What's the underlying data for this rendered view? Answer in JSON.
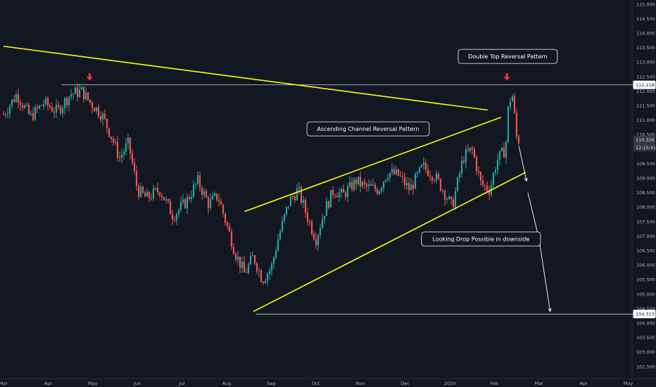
{
  "chart_data": {
    "type": "candlestick",
    "instrument_note": "",
    "x_axis": {
      "tick_labels": [
        "Mar",
        "Apr",
        "May",
        "Jun",
        "Jul",
        "Aug",
        "Sep",
        "Oct",
        "Nov",
        "Dec",
        "2020",
        "Feb",
        "Mar",
        "Apr",
        "May"
      ]
    },
    "y_axis": {
      "range": [
        102.3,
        115.0
      ],
      "tick_labels": [
        "115.000",
        "114.500",
        "114.000",
        "113.500",
        "113.000",
        "112.500",
        "112.000",
        "111.500",
        "111.000",
        "110.500",
        "110.000",
        "109.500",
        "109.000",
        "108.500",
        "108.000",
        "107.500",
        "107.000",
        "106.500",
        "106.000",
        "105.500",
        "105.000",
        "104.500",
        "104.000",
        "103.500",
        "103.000",
        "102.500"
      ]
    },
    "price_tags": [
      {
        "label": "112.218",
        "value": 112.218,
        "style": "outline"
      },
      {
        "label": "110.326",
        "value": 110.326,
        "style": "filled"
      },
      {
        "label": "12:15:41",
        "value": 110.06,
        "style": "filled"
      },
      {
        "label": "104.313",
        "value": 104.313,
        "style": "outline"
      }
    ],
    "horizontal_levels": [
      {
        "value": 112.218,
        "from_month": 1.3,
        "to_month": 14.2
      },
      {
        "value": 104.313,
        "from_month": 5.65,
        "to_month": 14.2
      }
    ],
    "trend_lines": [
      {
        "color": "#ffff00",
        "from": [
          0.0,
          113.55
        ],
        "to": [
          10.85,
          111.35
        ]
      },
      {
        "color": "#ffff00",
        "from": [
          5.4,
          107.85
        ],
        "to": [
          11.15,
          111.1
        ]
      },
      {
        "color": "#ffff00",
        "from": [
          5.6,
          104.4
        ],
        "to": [
          11.7,
          109.2
        ]
      }
    ],
    "arrows": [
      {
        "color": "#ffffff",
        "from": [
          11.55,
          110.1
        ],
        "to": [
          11.72,
          108.9
        ]
      },
      {
        "color": "#ffffff",
        "from": [
          11.75,
          108.5
        ],
        "to": [
          12.0,
          106.9
        ]
      },
      {
        "color": "#ffffff",
        "from": [
          12.0,
          106.9
        ],
        "to": [
          12.25,
          104.4
        ]
      }
    ],
    "markers": [
      {
        "type": "down-arrow",
        "color": "#f23645",
        "at": [
          1.93,
          112.4
        ]
      },
      {
        "type": "down-arrow",
        "color": "#f23645",
        "at": [
          11.28,
          112.4
        ]
      }
    ],
    "annotations": [
      {
        "text": "Double Top Reversal Pattern",
        "at": [
          11.3,
          113.2
        ]
      },
      {
        "text": "Ascending Channel Reversal Pattern",
        "at": [
          8.17,
          110.7
        ]
      },
      {
        "text": "Looking Drop Possible in downside",
        "at": [
          10.7,
          106.9
        ]
      }
    ],
    "candle_colors": {
      "up": "#26a69a",
      "down": "#ef5350"
    },
    "candle_anchors": [
      [
        0.0,
        111.2
      ],
      [
        0.3,
        111.9
      ],
      [
        0.6,
        111.1
      ],
      [
        0.9,
        111.6
      ],
      [
        1.2,
        111.3
      ],
      [
        1.5,
        111.9
      ],
      [
        1.75,
        112.0
      ],
      [
        1.95,
        111.6
      ],
      [
        2.2,
        111.2
      ],
      [
        2.4,
        110.5
      ],
      [
        2.6,
        109.7
      ],
      [
        2.8,
        110.2
      ],
      [
        3.0,
        108.6
      ],
      [
        3.2,
        108.3
      ],
      [
        3.5,
        108.6
      ],
      [
        3.8,
        107.7
      ],
      [
        4.1,
        108.2
      ],
      [
        4.35,
        108.9
      ],
      [
        4.6,
        108.1
      ],
      [
        4.8,
        108.4
      ],
      [
        5.0,
        107.4
      ],
      [
        5.2,
        106.4
      ],
      [
        5.4,
        105.7
      ],
      [
        5.6,
        106.3
      ],
      [
        5.8,
        105.5
      ],
      [
        6.0,
        105.9
      ],
      [
        6.15,
        106.9
      ],
      [
        6.4,
        108.2
      ],
      [
        6.6,
        108.6
      ],
      [
        6.8,
        107.7
      ],
      [
        7.0,
        106.9
      ],
      [
        7.2,
        107.9
      ],
      [
        7.4,
        108.6
      ],
      [
        7.6,
        108.4
      ],
      [
        7.9,
        108.9
      ],
      [
        8.1,
        108.7
      ],
      [
        8.4,
        108.6
      ],
      [
        8.6,
        109.2
      ],
      [
        8.85,
        109.1
      ],
      [
        9.1,
        108.6
      ],
      [
        9.4,
        109.4
      ],
      [
        9.65,
        109.1
      ],
      [
        9.85,
        108.6
      ],
      [
        10.05,
        108.0
      ],
      [
        10.3,
        109.7
      ],
      [
        10.5,
        110.0
      ],
      [
        10.7,
        108.8
      ],
      [
        10.9,
        108.6
      ],
      [
        11.05,
        109.6
      ],
      [
        11.25,
        110.0
      ],
      [
        11.32,
        111.6
      ],
      [
        11.4,
        111.9
      ],
      [
        11.5,
        110.4
      ],
      [
        11.55,
        110.3
      ]
    ]
  }
}
